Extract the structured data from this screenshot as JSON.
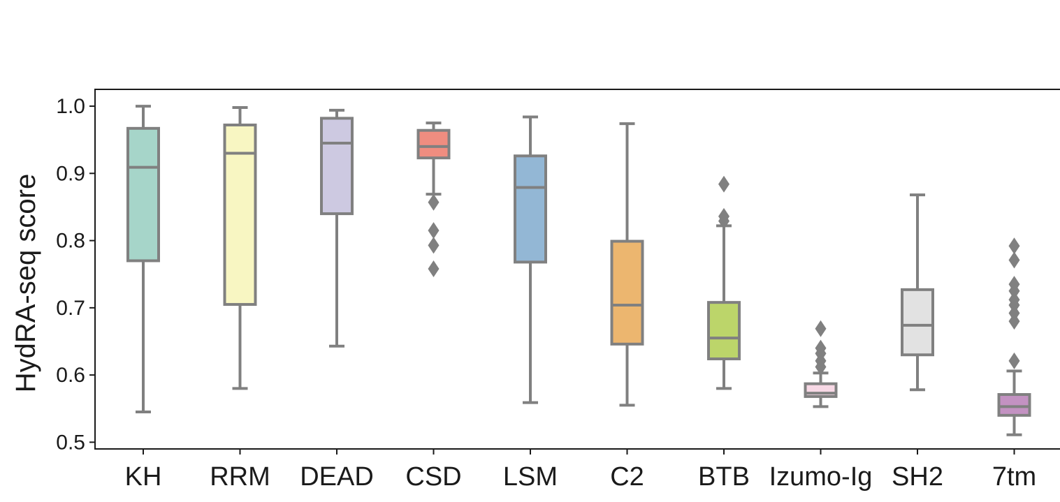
{
  "chart_data": {
    "type": "box",
    "title": "",
    "xlabel": "",
    "ylabel": "HydRA-seq score",
    "ylim": [
      0.49,
      1.025
    ],
    "yticks": [
      0.5,
      0.6,
      0.7,
      0.8,
      0.9,
      1.0
    ],
    "ytick_labels": [
      "0.5",
      "0.6",
      "0.7",
      "0.8",
      "0.9",
      "1.0"
    ],
    "categories": [
      "KH",
      "RRM",
      "DEAD",
      "CSD",
      "LSM",
      "C2",
      "BTB",
      "Izumo-Ig",
      "SH2",
      "7tm"
    ],
    "boxes": [
      {
        "name": "KH",
        "whisker_low": 0.545,
        "q1": 0.77,
        "median": 0.909,
        "q3": 0.967,
        "whisker_high": 1.0,
        "outliers": [],
        "color": "#a6d5c9"
      },
      {
        "name": "RRM",
        "whisker_low": 0.58,
        "q1": 0.705,
        "median": 0.93,
        "q3": 0.972,
        "whisker_high": 0.998,
        "outliers": [],
        "color": "#f8f6c2"
      },
      {
        "name": "DEAD",
        "whisker_low": 0.643,
        "q1": 0.84,
        "median": 0.945,
        "q3": 0.982,
        "whisker_high": 0.994,
        "outliers": [],
        "color": "#cdc9e1"
      },
      {
        "name": "CSD",
        "whisker_low": 0.869,
        "q1": 0.923,
        "median": 0.94,
        "q3": 0.964,
        "whisker_high": 0.975,
        "outliers": [
          0.857,
          0.815,
          0.793,
          0.758
        ],
        "color": "#ef8d80"
      },
      {
        "name": "LSM",
        "whisker_low": 0.559,
        "q1": 0.768,
        "median": 0.879,
        "q3": 0.926,
        "whisker_high": 0.984,
        "outliers": [],
        "color": "#93b7d5"
      },
      {
        "name": "C2",
        "whisker_low": 0.555,
        "q1": 0.646,
        "median": 0.704,
        "q3": 0.799,
        "whisker_high": 0.974,
        "outliers": [],
        "color": "#ecb66f"
      },
      {
        "name": "BTB",
        "whisker_low": 0.58,
        "q1": 0.624,
        "median": 0.655,
        "q3": 0.708,
        "whisker_high": 0.822,
        "outliers": [
          0.884,
          0.836,
          0.829
        ],
        "color": "#bcd56a"
      },
      {
        "name": "Izumo-Ig",
        "whisker_low": 0.553,
        "q1": 0.568,
        "median": 0.573,
        "q3": 0.587,
        "whisker_high": 0.603,
        "outliers": [
          0.669,
          0.64,
          0.632,
          0.621,
          0.612
        ],
        "color": "#f7d8e5"
      },
      {
        "name": "SH2",
        "whisker_low": 0.578,
        "q1": 0.63,
        "median": 0.674,
        "q3": 0.727,
        "whisker_high": 0.868,
        "outliers": [],
        "color": "#e2e2e2"
      },
      {
        "name": "7tm",
        "whisker_low": 0.511,
        "q1": 0.54,
        "median": 0.553,
        "q3": 0.571,
        "whisker_high": 0.606,
        "outliers": [
          0.792,
          0.771,
          0.735,
          0.725,
          0.712,
          0.704,
          0.692,
          0.68,
          0.621
        ],
        "color": "#c392c2"
      }
    ],
    "style": {
      "line_color": "#808080",
      "axis_color": "#1a1a1a"
    }
  }
}
